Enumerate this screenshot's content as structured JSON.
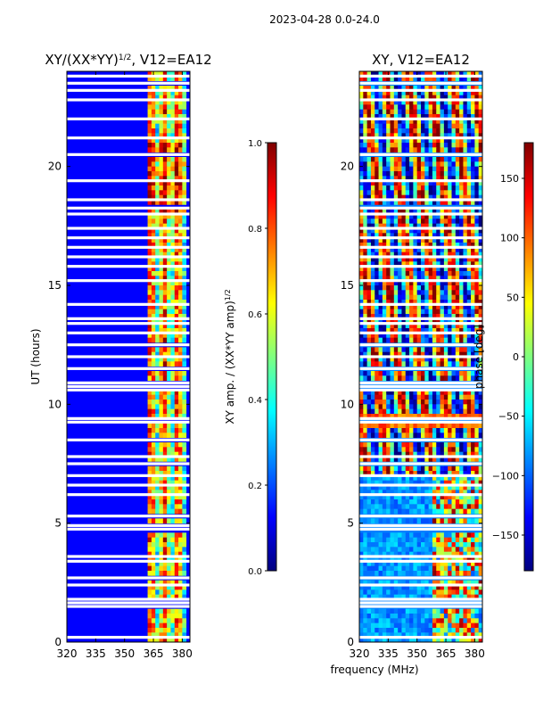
{
  "suptitle": "2023-04-28 0.0-24.0",
  "colors": {
    "jet": [
      "#00007f",
      "#0000ff",
      "#007fff",
      "#00ffff",
      "#7fff7f",
      "#ffff00",
      "#ff7f00",
      "#ff0000",
      "#7f0000"
    ],
    "gap": "#ffffff",
    "frame": "#000000"
  },
  "chart_data": [
    {
      "type": "heatmap",
      "title": "XY/(XX*YY)",
      "title_sup": "1/2",
      "title_suffix": ", V12=EA12",
      "xlabel": "",
      "ylabel": "UT (hours)",
      "xlim": [
        320,
        384
      ],
      "ylim": [
        0,
        24
      ],
      "xticks": [
        320,
        335,
        350,
        365,
        380
      ],
      "yticks": [
        0,
        5,
        10,
        15,
        20
      ],
      "colorbar": {
        "label": "XY amp. / (XX*YY amp)",
        "label_sup": "1/2",
        "range": [
          0.0,
          1.0
        ],
        "ticks": [
          "0.0",
          "0.2",
          "0.4",
          "0.6",
          "0.8",
          "1.0"
        ],
        "tick_values": [
          0.0,
          0.2,
          0.4,
          0.6,
          0.8,
          1.0
        ]
      }
    },
    {
      "type": "heatmap",
      "title": "XY, V12=EA12",
      "xlabel": "frequency (MHz)",
      "ylabel": "",
      "xlim": [
        320,
        384
      ],
      "ylim": [
        0,
        24
      ],
      "xticks": [
        320,
        335,
        350,
        365,
        380
      ],
      "yticks": [
        0,
        5,
        10,
        15,
        20
      ],
      "colorbar": {
        "label": "phase [deg]",
        "range": [
          -180,
          180
        ],
        "ticks": [
          "150",
          "100",
          "50",
          "0",
          "−50",
          "−100",
          "−150"
        ],
        "tick_values": [
          150,
          100,
          50,
          0,
          -50,
          -100,
          -150
        ]
      }
    }
  ],
  "gaps_hours": [
    0.2,
    1.5,
    1.65,
    1.8,
    2.4,
    2.7,
    3.4,
    3.6,
    4.75,
    4.9,
    5.3,
    6.2,
    6.6,
    7.0,
    7.5,
    7.8,
    8.5,
    9.25,
    9.4,
    10.6,
    10.75,
    10.9,
    11.5,
    12.0,
    12.5,
    13.0,
    13.4,
    13.6,
    14.2,
    15.2,
    15.8,
    16.2,
    16.6,
    17.0,
    17.4,
    18.0,
    18.25,
    18.6,
    19.4,
    20.5,
    21.2,
    22.0,
    22.8,
    23.2,
    23.5,
    23.8
  ]
}
